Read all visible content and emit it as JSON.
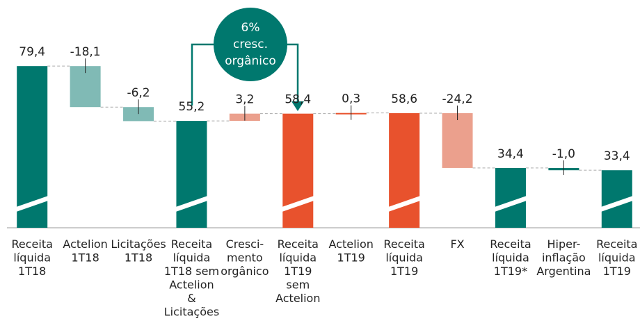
{
  "chart_data": {
    "type": "waterfall",
    "categories": [
      "Receita\nlíquida\n1T18",
      "Actelion\n1T18",
      "Licitações\n1T18",
      "Receita\nlíquida\n1T18 sem\nActelion\n&\nLicitações",
      "Cresci-\nmento\norgânico",
      "Receita\nlíquida\n1T19\nsem\nActelion",
      "Actelion\n1T19",
      "Receita\nlíquida\n1T19",
      "FX",
      "Receita\nlíquida\n1T19*",
      "Hiper-\ninflação\nArgentina",
      "Receita\nlíquida\n1T19"
    ],
    "values": [
      79.4,
      -18.1,
      -6.2,
      55.2,
      3.2,
      58.4,
      0.3,
      58.6,
      -24.2,
      34.4,
      -1.0,
      33.4
    ],
    "value_labels": [
      "79,4",
      "-18,1",
      "-6,2",
      "55,2",
      "3,2",
      "58,4",
      "0,3",
      "58,6",
      "-24,2",
      "34,4",
      "-1,0",
      "33,4"
    ],
    "totals": [
      true,
      false,
      false,
      true,
      false,
      true,
      false,
      true,
      false,
      true,
      false,
      true
    ],
    "colors": [
      "#00786e",
      "#80bab5",
      "#80bab5",
      "#00786e",
      "#eba08d",
      "#e8522d",
      "#e8522d",
      "#e8522d",
      "#eba08d",
      "#00786e",
      "#00786e",
      "#00786e"
    ],
    "ylim": [
      8,
      100
    ],
    "annotation": [
      "6%",
      "cresc.",
      "orgânico"
    ]
  }
}
